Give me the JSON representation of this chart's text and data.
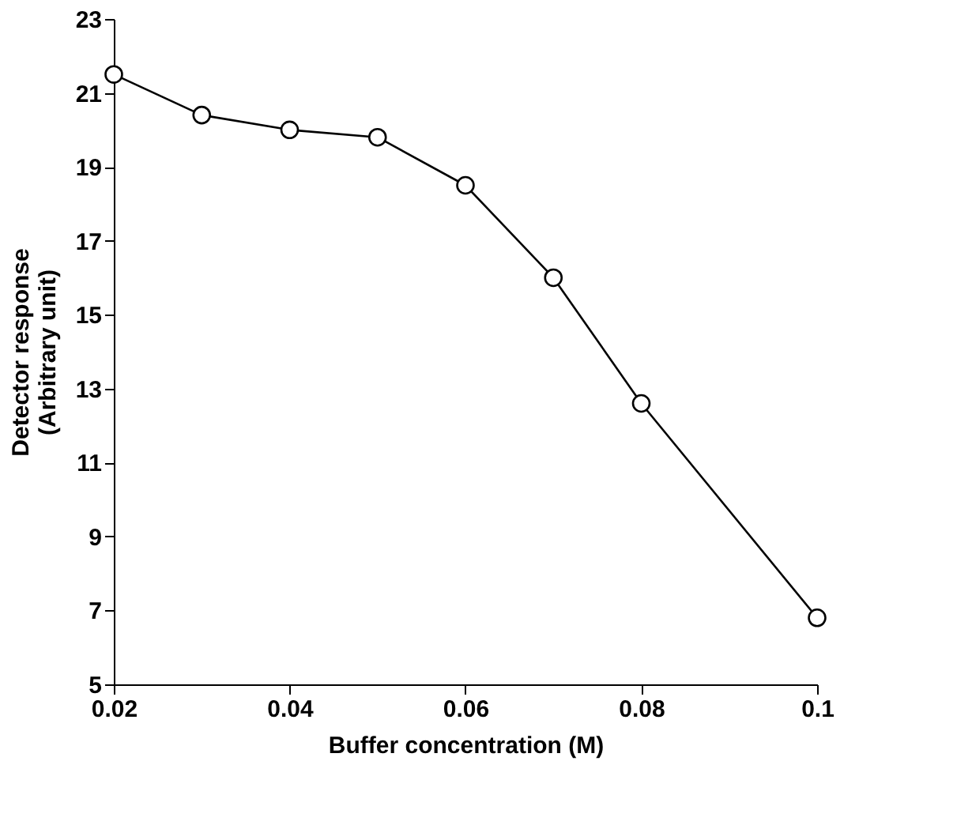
{
  "chart_data": {
    "type": "line",
    "xlabel": "Buffer concentration (M)",
    "ylabel": "Detector response\n(Arbitrary unit)",
    "x": [
      0.02,
      0.03,
      0.04,
      0.05,
      0.06,
      0.07,
      0.08,
      0.1
    ],
    "series": [
      {
        "color": "#000000",
        "values": [
          21.5,
          20.4,
          20.0,
          19.8,
          18.5,
          16.0,
          12.6,
          6.8
        ]
      }
    ],
    "xlim": [
      0.02,
      0.1
    ],
    "xticks": [
      0.02,
      0.04,
      0.06,
      0.08,
      {
        "value": 0.1,
        "label": "0.1"
      }
    ],
    "ylim": [
      5,
      23
    ],
    "yticks": [
      5,
      7,
      9,
      11,
      13,
      15,
      17,
      19,
      21,
      23
    ],
    "marker": "circle",
    "line_style": "solid",
    "grid": false
  }
}
